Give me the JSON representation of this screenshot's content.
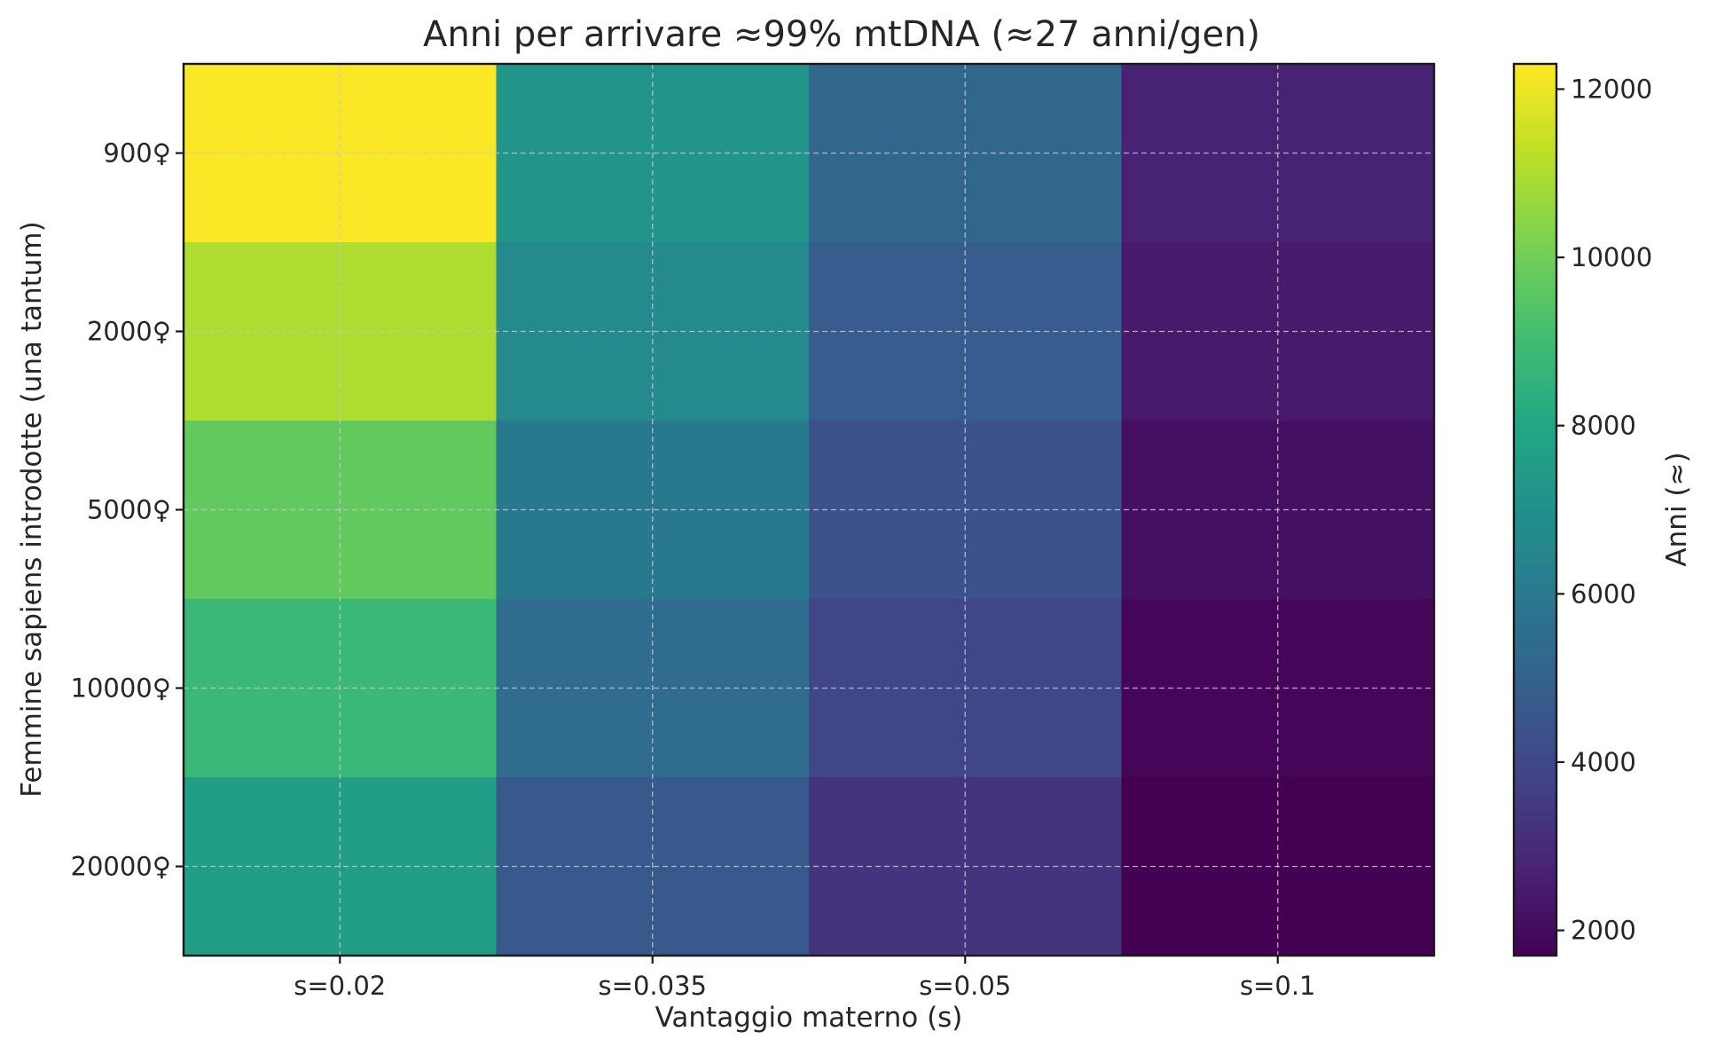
{
  "chart_data": {
    "type": "heatmap",
    "title": "Anni per arrivare ≈99% mtDNA (≈27 anni/gen)",
    "xlabel": "Vantaggio materno (s)",
    "ylabel": "Femmine sapiens introdotte (una tantum)",
    "x_categories": [
      "s=0.02",
      "s=0.035",
      "s=0.05",
      "s=0.1"
    ],
    "y_categories": [
      "900♀",
      "2000♀",
      "5000♀",
      "10000♀",
      "20000♀"
    ],
    "values": [
      [
        12250,
        7200,
        5200,
        2700
      ],
      [
        11000,
        6700,
        4800,
        2450
      ],
      [
        9700,
        6000,
        4350,
        2150
      ],
      [
        8800,
        5450,
        3900,
        1850
      ],
      [
        7600,
        4650,
        3250,
        1700
      ]
    ],
    "colorbar": {
      "label": "Anni (≈)",
      "range": [
        1700,
        12300
      ],
      "ticks": [
        2000,
        4000,
        6000,
        8000,
        10000,
        12000
      ],
      "colormap": "viridis"
    },
    "grid": true
  }
}
